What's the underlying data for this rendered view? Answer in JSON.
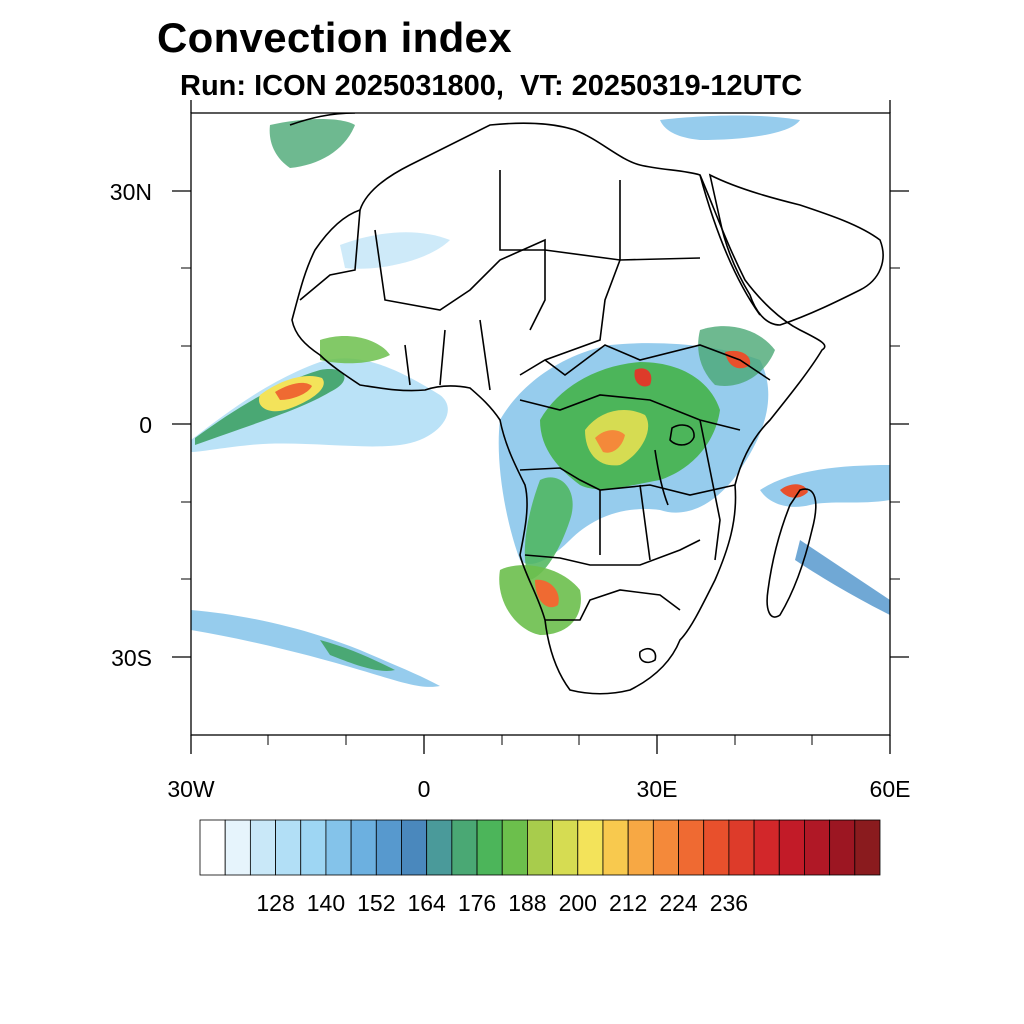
{
  "title": "Convection index",
  "subtitle": "Run: ICON 2025031800,  VT: 20250319-12UTC",
  "axes": {
    "y_ticks": [
      {
        "label": "30N",
        "lat": 30
      },
      {
        "label": "0",
        "lat": 0
      },
      {
        "label": "30S",
        "lat": -30
      }
    ],
    "x_ticks": [
      {
        "label": "30W",
        "lon": -30
      },
      {
        "label": "0",
        "lon": 0
      },
      {
        "label": "30E",
        "lon": 30
      },
      {
        "label": "60E",
        "lon": 60
      }
    ],
    "lon_range": [
      -30,
      60
    ],
    "lat_range": [
      -40,
      40
    ]
  },
  "colorbar": {
    "colors": [
      "#ffffff",
      "#e6f4fc",
      "#c9e8f8",
      "#b2dff6",
      "#9ed6f3",
      "#84c3ea",
      "#6cb0e0",
      "#5799ce",
      "#4a88bd",
      "#4a9a9a",
      "#4aa874",
      "#4cb55a",
      "#6cbf4c",
      "#a8cc4c",
      "#d6dc52",
      "#f3e35a",
      "#f8c94e",
      "#f7a844",
      "#f4893a",
      "#ef6a32",
      "#e8502c",
      "#dd3b2a",
      "#d2272a",
      "#c21b28",
      "#b01826",
      "#9c1622",
      "#8a1b1e"
    ],
    "labels": [
      "128",
      "140",
      "152",
      "164",
      "176",
      "188",
      "200",
      "212",
      "224",
      "236"
    ]
  }
}
